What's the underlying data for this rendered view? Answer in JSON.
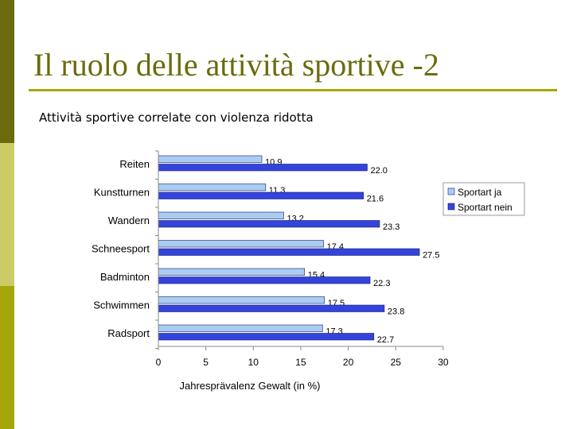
{
  "slide": {
    "title": "Il ruolo delle attività sportive -2",
    "subtitle": "Attività sportive correlate con violenza ridotta"
  },
  "colors": {
    "sidebar": [
      "#6b6b0e",
      "#cccc66",
      "#a6a60a"
    ],
    "title": "#6b6b0e",
    "rule": "#a6a60a"
  },
  "chart_data": {
    "type": "bar",
    "orientation": "horizontal",
    "categories": [
      "Reiten",
      "Kunstturnen",
      "Wandern",
      "Schneesport",
      "Badminton",
      "Schwimmen",
      "Radsport"
    ],
    "series": [
      {
        "name": "Sportart ja",
        "color": "#a9cdf2",
        "values": [
          10.9,
          11.3,
          13.2,
          17.4,
          15.4,
          17.5,
          17.3
        ],
        "labels": [
          "10.9",
          "11.3",
          "13.2",
          "17.4",
          "15.4",
          "17.5",
          "17.3"
        ]
      },
      {
        "name": "Sportart nein",
        "color": "#3344dd",
        "values": [
          22.0,
          21.6,
          23.3,
          27.5,
          22.3,
          23.8,
          22.7
        ],
        "labels": [
          "22.0",
          "21.6",
          "23.3",
          "27.5",
          "22.3",
          "23.8",
          "22.7"
        ]
      }
    ],
    "xlim": [
      0,
      30
    ],
    "xticks": [
      "0",
      "5",
      "10",
      "15",
      "20",
      "25",
      "30"
    ],
    "xlabel": "Jahresprävalenz Gewalt (in %)",
    "legend": "right",
    "grid": false
  }
}
